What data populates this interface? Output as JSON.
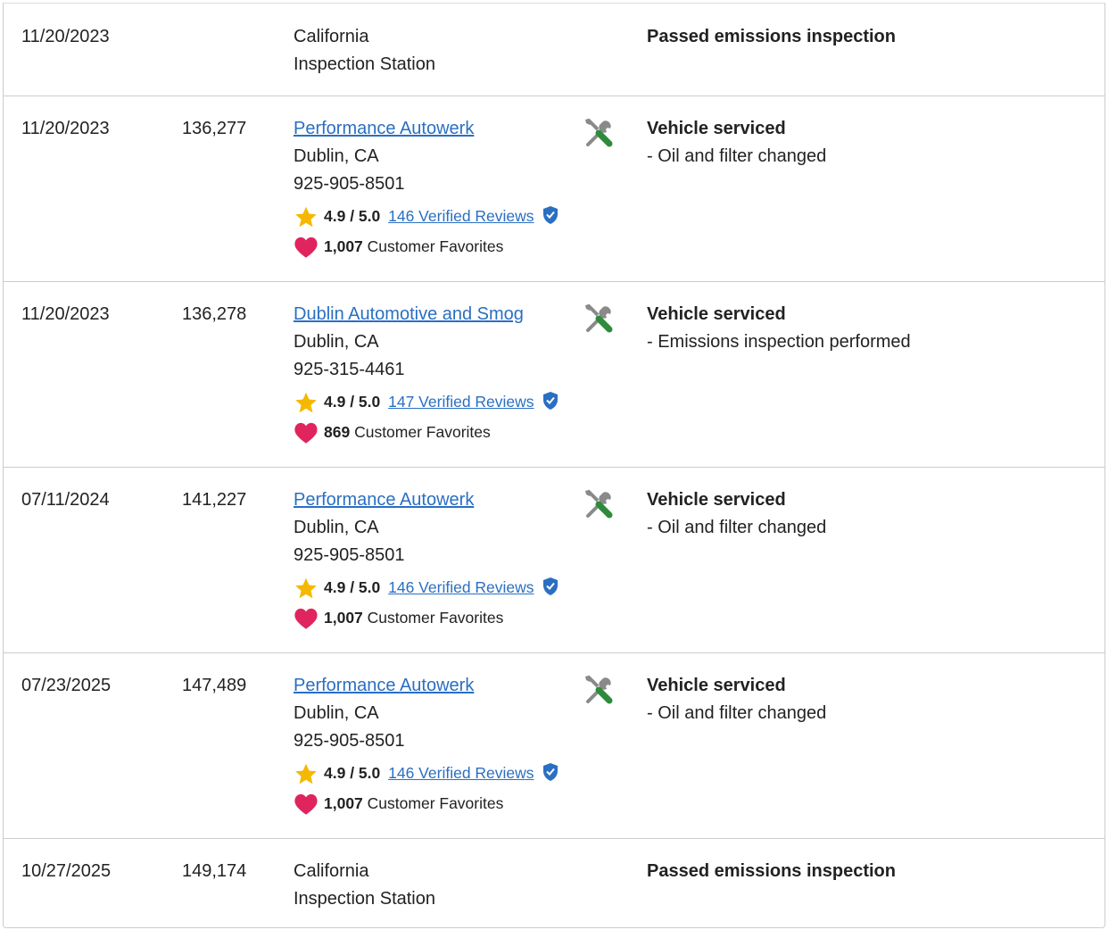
{
  "rows": [
    {
      "date": "11/20/2023",
      "odometer": "",
      "source": {
        "line1": "California",
        "line2": "Inspection Station"
      },
      "description": {
        "title": "Passed emissions inspection",
        "items": []
      }
    },
    {
      "date": "11/20/2023",
      "odometer": "136,277",
      "source": {
        "shop_name": "Performance Autowerk",
        "location": "Dublin, CA",
        "phone": "925-905-8501"
      },
      "rating": "4.9 / 5.0",
      "reviews": "146 Verified Reviews",
      "favorites_count": "1,007",
      "favorites_label": "Customer Favorites",
      "icon": "tools-icon",
      "description": {
        "title": "Vehicle serviced",
        "items": [
          "- Oil and filter changed"
        ]
      }
    },
    {
      "date": "11/20/2023",
      "odometer": "136,278",
      "source": {
        "shop_name": "Dublin Automotive and Smog",
        "location": "Dublin, CA",
        "phone": "925-315-4461"
      },
      "rating": "4.9 / 5.0",
      "reviews": "147 Verified Reviews",
      "favorites_count": "869",
      "favorites_label": "Customer Favorites",
      "icon": "tools-icon",
      "description": {
        "title": "Vehicle serviced",
        "items": [
          "- Emissions inspection performed"
        ]
      }
    },
    {
      "date": "07/11/2024",
      "odometer": "141,227",
      "source": {
        "shop_name": "Performance Autowerk",
        "location": "Dublin, CA",
        "phone": "925-905-8501"
      },
      "rating": "4.9 / 5.0",
      "reviews": "146 Verified Reviews",
      "favorites_count": "1,007",
      "favorites_label": "Customer Favorites",
      "icon": "tools-icon",
      "description": {
        "title": "Vehicle serviced",
        "items": [
          "- Oil and filter changed"
        ]
      }
    },
    {
      "date": "07/23/2025",
      "odometer": "147,489",
      "source": {
        "shop_name": "Performance Autowerk",
        "location": "Dublin, CA",
        "phone": "925-905-8501"
      },
      "rating": "4.9 / 5.0",
      "reviews": "146 Verified Reviews",
      "favorites_count": "1,007",
      "favorites_label": "Customer Favorites",
      "icon": "tools-icon",
      "description": {
        "title": "Vehicle serviced",
        "items": [
          "- Oil and filter changed"
        ]
      }
    },
    {
      "date": "10/27/2025",
      "odometer": "149,174",
      "source": {
        "line1": "California",
        "line2": "Inspection Station"
      },
      "description": {
        "title": "Passed emissions inspection",
        "items": []
      }
    }
  ],
  "colors": {
    "link": "#2a6fc2",
    "star": "#f5b800",
    "heart": "#e0245e",
    "verified_badge": "#2a6fc2",
    "tool_gray": "#8a8a8a",
    "tool_green": "#2e8b3a",
    "divider": "#cccccc"
  },
  "icons": {
    "service": "tools-icon",
    "rating": "star-icon",
    "verified": "verified-badge-icon",
    "favorites": "heart-icon"
  }
}
